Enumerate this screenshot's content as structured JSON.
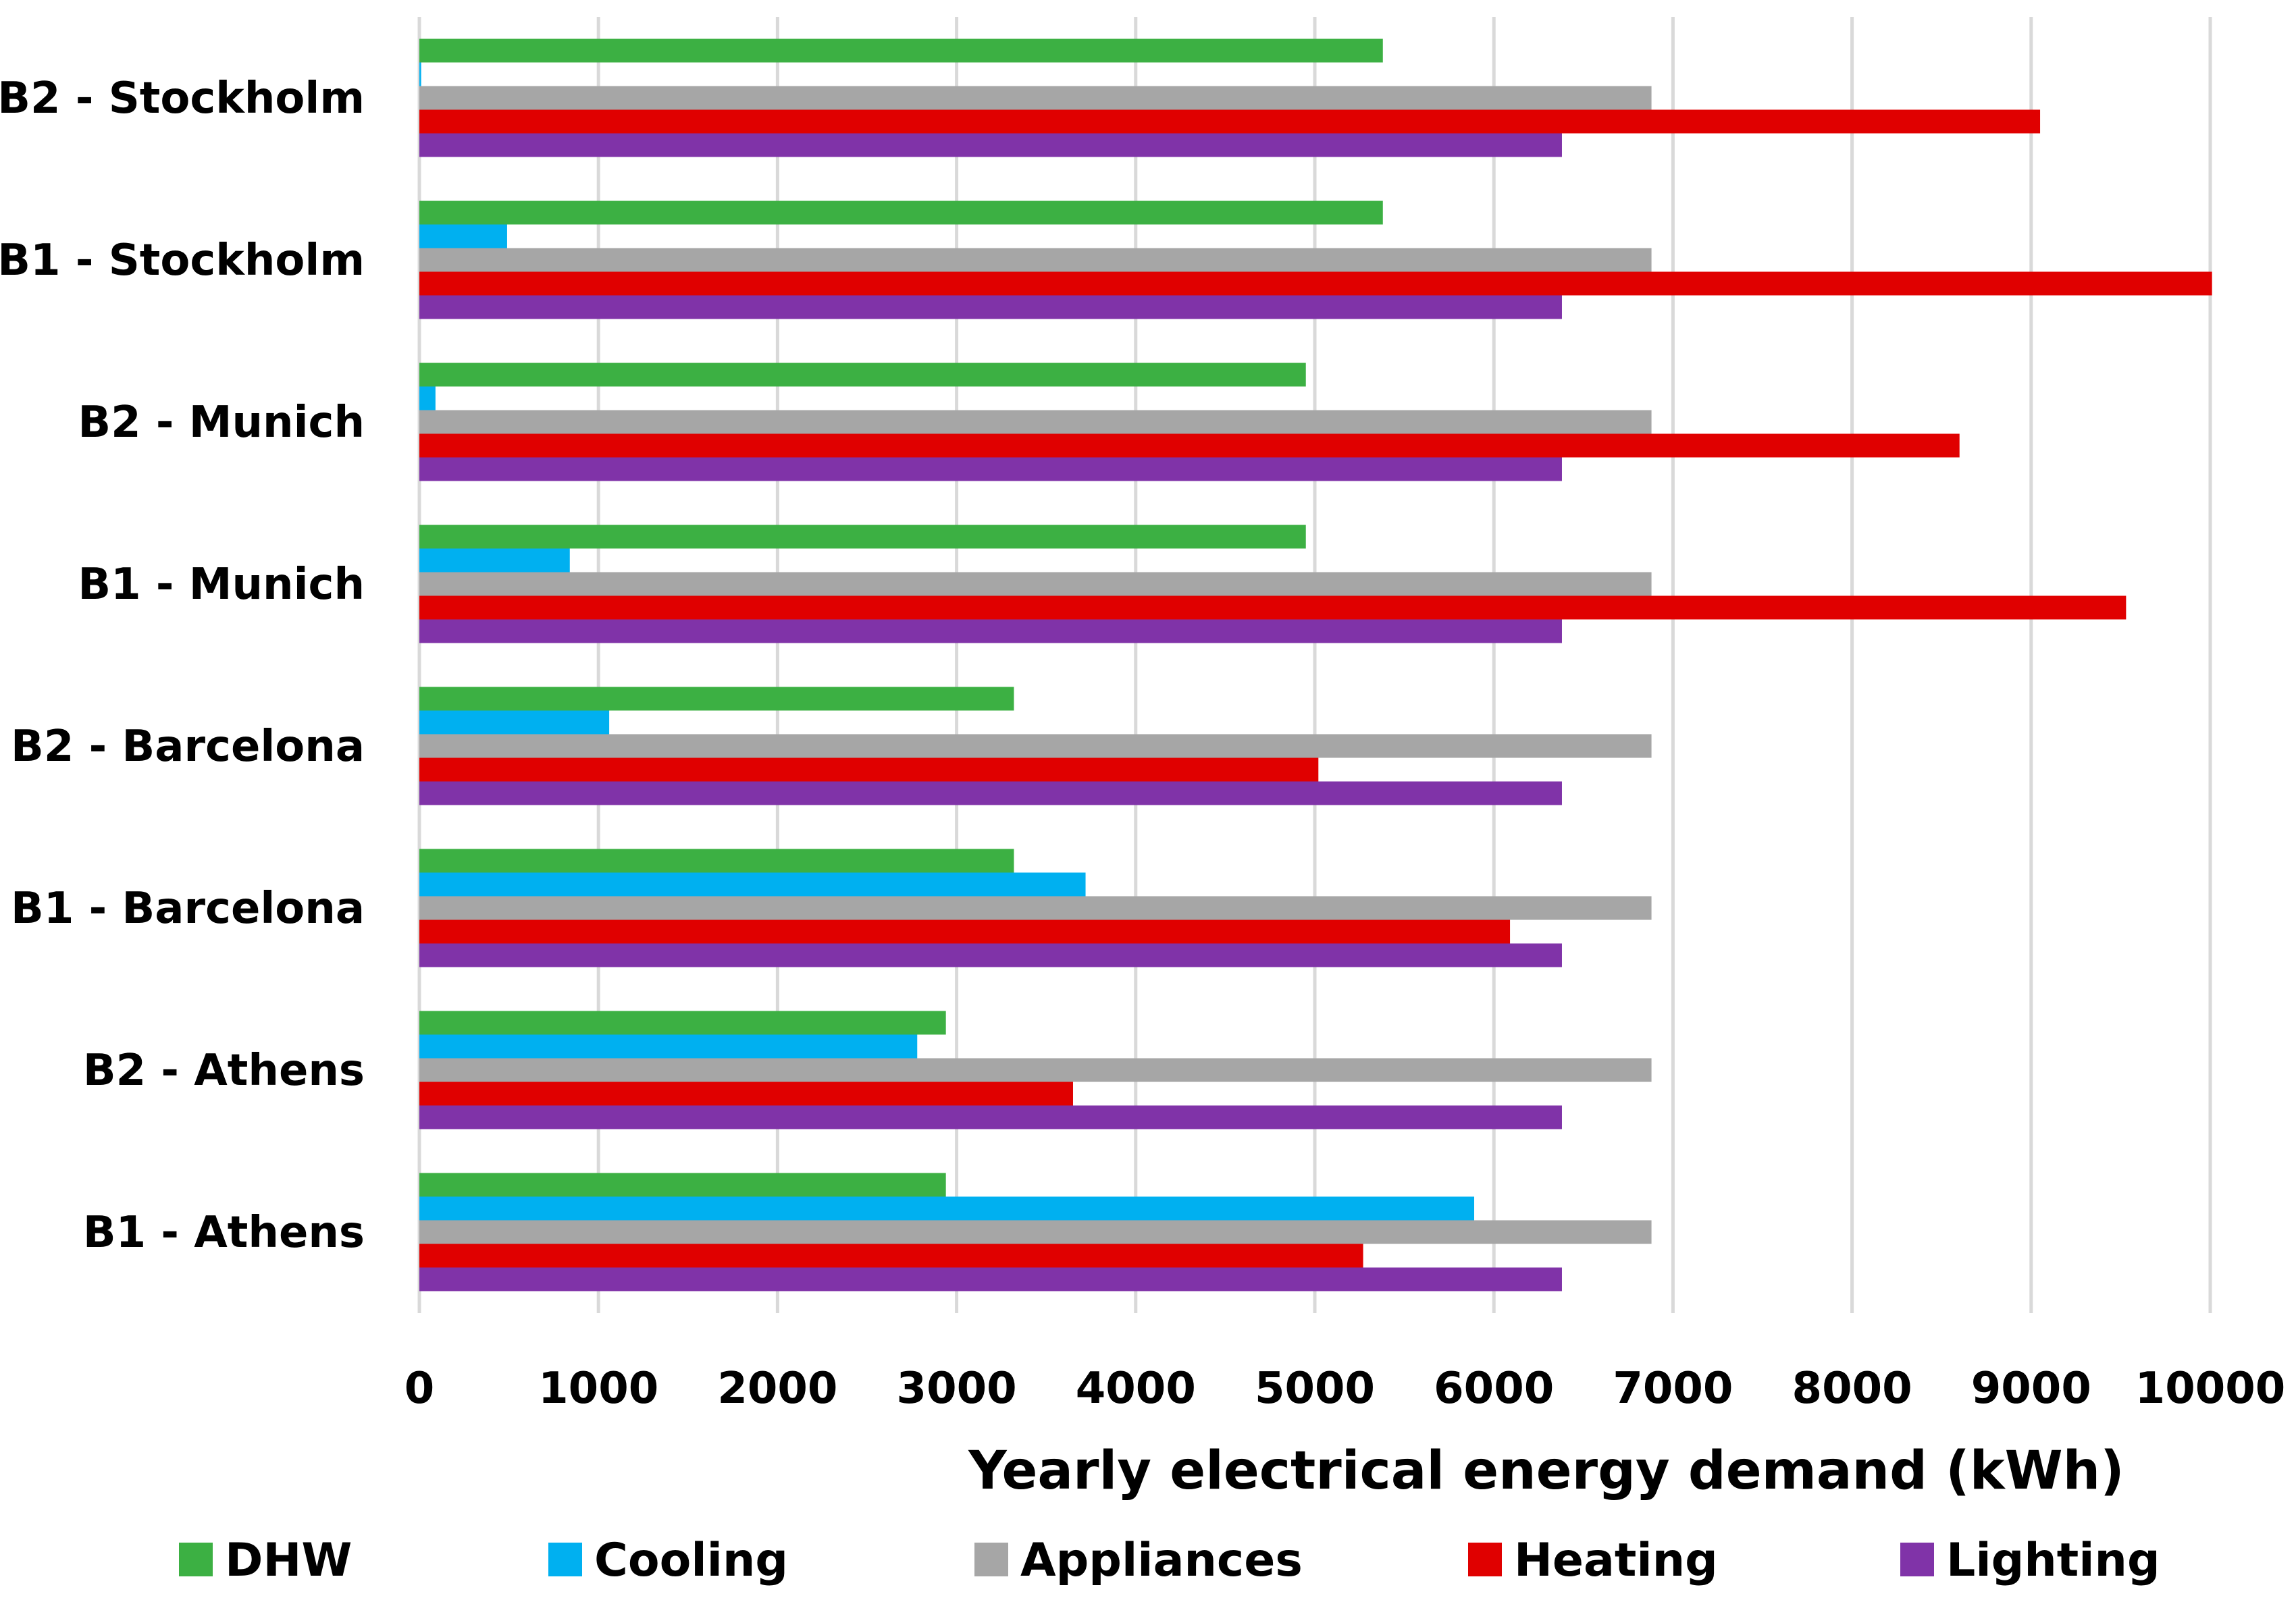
{
  "chart_data": {
    "type": "bar",
    "orientation": "horizontal",
    "title": "",
    "xlabel": "Yearly electrical energy demand (kWh)",
    "ylabel": "",
    "xlim": [
      0,
      10000
    ],
    "xticks": [
      0,
      1000,
      2000,
      3000,
      4000,
      5000,
      6000,
      7000,
      8000,
      9000,
      10000
    ],
    "grid": true,
    "legend_position": "bottom",
    "categories": [
      "B2 - Stockholm",
      "B1 - Stockholm",
      "B2 - Munich",
      "B1 - Munich",
      "B2 - Barcelona",
      "B1 - Barcelona",
      "B2 - Athens",
      "B1 - Athens"
    ],
    "series": [
      {
        "name": "DHW",
        "color": "#3cb043",
        "values": [
          5380,
          5380,
          4950,
          4950,
          3320,
          3320,
          2940,
          2940
        ]
      },
      {
        "name": "Cooling",
        "color": "#00b0f0",
        "values": [
          10,
          490,
          90,
          840,
          1060,
          3720,
          2780,
          5890
        ]
      },
      {
        "name": "Appliances",
        "color": "#a6a6a6",
        "values": [
          6880,
          6880,
          6880,
          6880,
          6880,
          6880,
          6880,
          6880
        ]
      },
      {
        "name": "Heating",
        "color": "#e00000",
        "values": [
          9050,
          10010,
          8600,
          9530,
          5020,
          6090,
          3650,
          5270
        ]
      },
      {
        "name": "Lighting",
        "color": "#8033a8",
        "values": [
          6380,
          6380,
          6380,
          6380,
          6380,
          6380,
          6380,
          6380
        ]
      }
    ]
  }
}
